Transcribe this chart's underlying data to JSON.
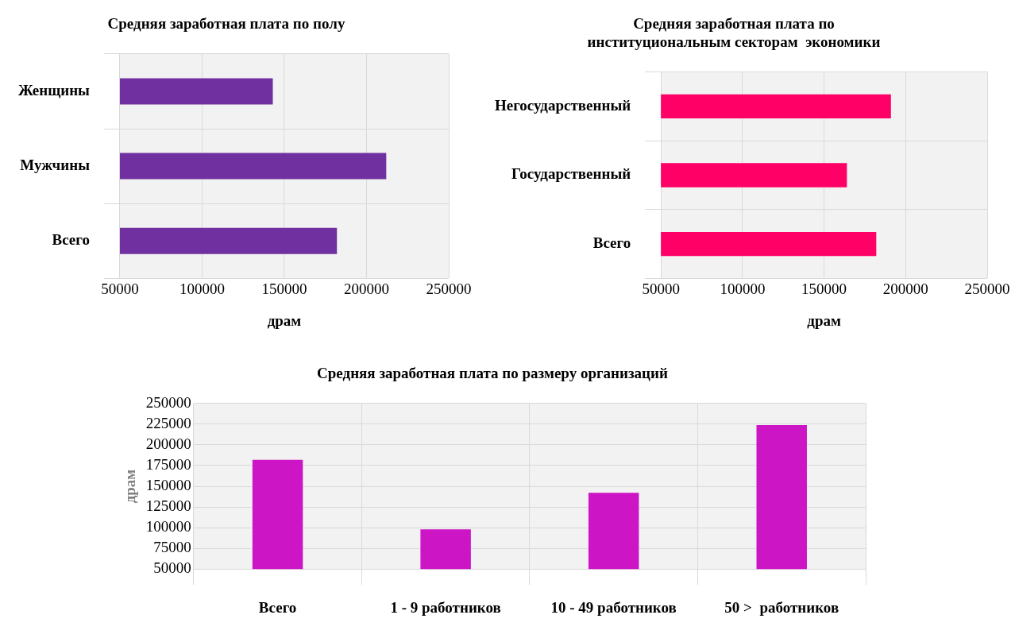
{
  "chart_data": [
    {
      "type": "bar",
      "orientation": "horizontal",
      "title": "Средняя заработная плата по полу",
      "xlabel": "драм",
      "categories": [
        "Женщины",
        "Мужчины",
        "Всего"
      ],
      "values": [
        143000,
        212000,
        182000
      ],
      "color": "#7030a0",
      "xlim": [
        50000,
        250000
      ],
      "xticks": [
        50000,
        100000,
        150000,
        200000,
        250000
      ],
      "grid": true
    },
    {
      "type": "bar",
      "orientation": "horizontal",
      "title": "Средняя заработная плата по\nинституциональным секторам  экономики",
      "xlabel": "драм",
      "categories": [
        "Негосударственный",
        "Государственный",
        "Всего"
      ],
      "values": [
        191000,
        164000,
        182000
      ],
      "color": "#ff0066",
      "xlim": [
        50000,
        250000
      ],
      "xticks": [
        50000,
        100000,
        150000,
        200000,
        250000
      ],
      "grid": true
    },
    {
      "type": "bar",
      "title": "Средняя заработная плата по размеру организаций",
      "ylabel": "драм",
      "categories": [
        "Всего",
        "1 - 9 работников",
        "10 - 49 работников",
        "50 >  работников"
      ],
      "values": [
        182000,
        98000,
        142000,
        224000
      ],
      "color": "#cc15c4",
      "ylim": [
        50000,
        250000
      ],
      "yticks": [
        50000,
        75000,
        100000,
        125000,
        150000,
        175000,
        200000,
        225000,
        250000
      ],
      "grid": true
    }
  ]
}
